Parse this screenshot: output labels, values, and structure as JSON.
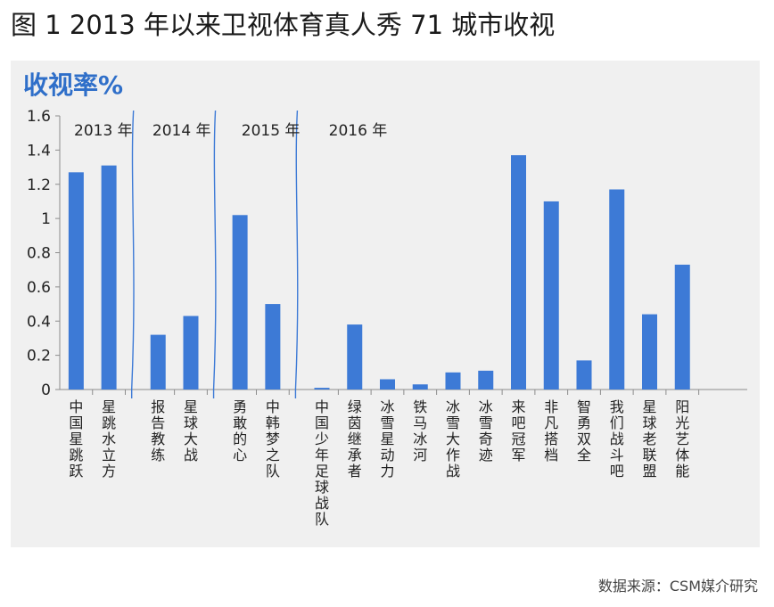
{
  "title": "图 1 2013 年以来卫视体育真人秀 71 城市收视",
  "source": "数据来源：CSM媒介研究",
  "chart_data": {
    "type": "bar",
    "title": "图 1 2013 年以来卫视体育真人秀 71 城市收视",
    "ylabel": "收视率%",
    "xlabel": "",
    "ylim": [
      0,
      1.6
    ],
    "yticks": [
      0,
      0.2,
      0.4,
      0.6,
      0.8,
      1,
      1.2,
      1.4,
      1.6
    ],
    "ytick_labels": [
      "0",
      "0.2",
      "0.4",
      "0.6",
      "0.8",
      "1",
      "1.2",
      "1.4",
      "1.6"
    ],
    "bar_color": "#3d7ad6",
    "groups": [
      {
        "label": "2013 年",
        "categories": [
          "中国星跳跃",
          "星跳水立方"
        ],
        "values": [
          1.27,
          1.31
        ]
      },
      {
        "label": "2014 年",
        "categories": [
          "报告教练",
          "星球大战"
        ],
        "values": [
          0.32,
          0.43
        ]
      },
      {
        "label": "2015 年",
        "categories": [
          "勇敢的心",
          "中韩梦之队"
        ],
        "values": [
          1.02,
          0.5
        ]
      },
      {
        "label": "2016 年",
        "categories": [
          "中国少年足球战队",
          "绿茵继承者",
          "冰雪星动力",
          "铁马冰河",
          "冰雪大作战",
          "冰雪奇迹",
          "来吧冠军",
          "非凡搭档",
          "智勇双全",
          "我们战斗吧",
          "星球老联盟",
          "阳光艺体能"
        ],
        "values": [
          0.01,
          0.38,
          0.06,
          0.03,
          0.1,
          0.11,
          1.37,
          1.1,
          0.17,
          1.17,
          0.44,
          0.73
        ]
      }
    ]
  }
}
